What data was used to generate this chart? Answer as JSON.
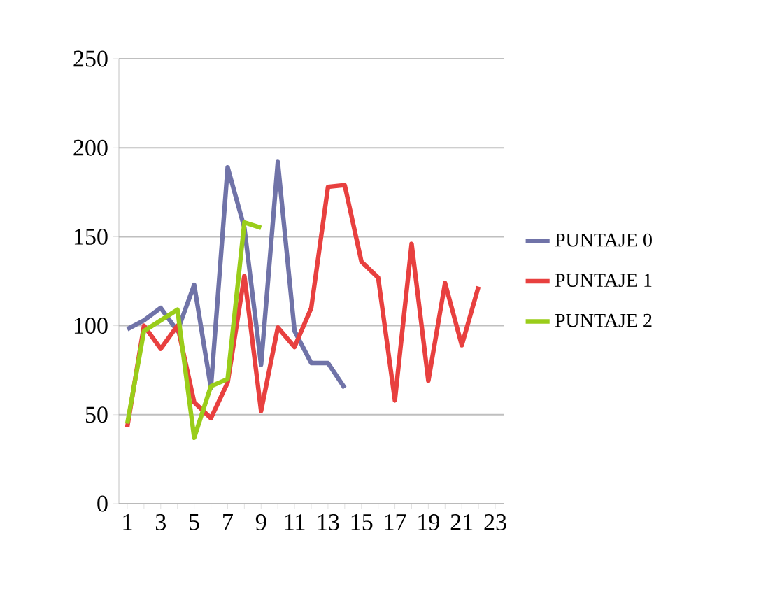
{
  "chart_data": {
    "type": "line",
    "categories": [
      "1",
      null,
      "3",
      null,
      "5",
      null,
      "7",
      null,
      "9",
      null,
      "11",
      null,
      "13",
      null,
      "15",
      null,
      "17",
      null,
      "19",
      null,
      "21",
      null,
      "23"
    ],
    "series": [
      {
        "name": "PUNTAJE 0",
        "color": "#7073a8",
        "values": [
          98,
          103,
          110,
          97,
          123,
          65,
          189,
          155,
          78,
          192,
          97,
          79,
          79,
          65,
          null,
          null,
          null,
          null,
          null,
          null,
          null,
          null,
          null
        ]
      },
      {
        "name": "PUNTAJE 1",
        "color": "#e8403f",
        "values": [
          43,
          100,
          87,
          100,
          57,
          48,
          68,
          128,
          52,
          99,
          88,
          110,
          178,
          179,
          136,
          127,
          58,
          146,
          69,
          124,
          89,
          122,
          null
        ]
      },
      {
        "name": "PUNTAJE 2",
        "color": "#9acd1a",
        "values": [
          45,
          97,
          103,
          109,
          37,
          66,
          70,
          158,
          155,
          null,
          null,
          null,
          null,
          null,
          null,
          null,
          null,
          null,
          null,
          null,
          null,
          null,
          null
        ]
      }
    ],
    "ylim": [
      0,
      250
    ],
    "yticks": [
      0,
      50,
      100,
      150,
      200,
      250
    ],
    "grid": "y",
    "legend": "right",
    "marker": "none"
  }
}
